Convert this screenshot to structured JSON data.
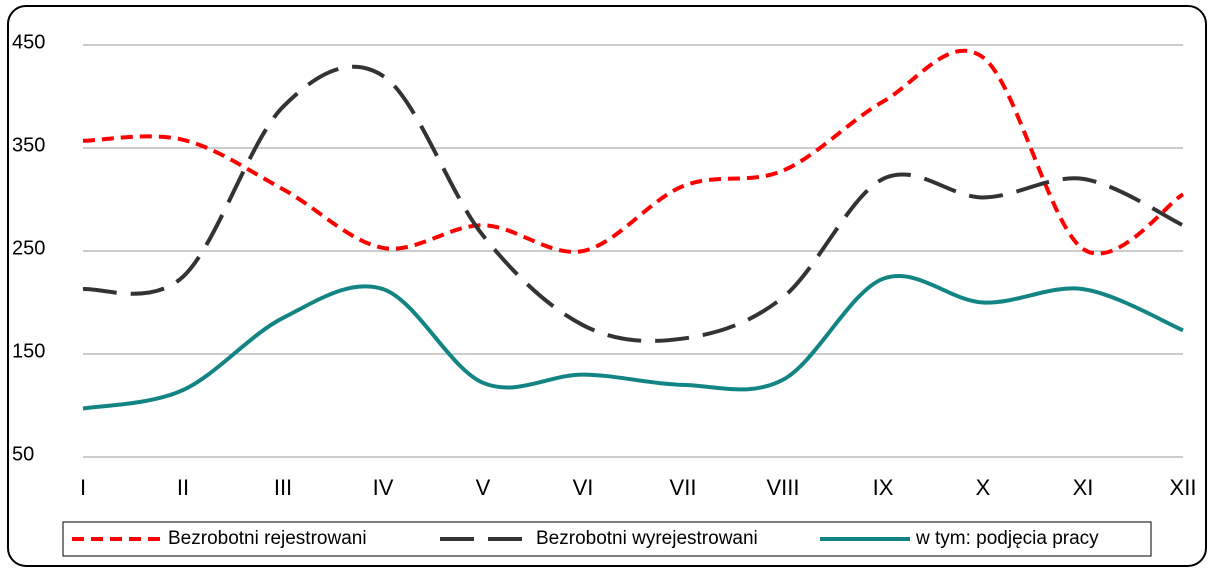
{
  "chart_data": {
    "type": "line",
    "categories": [
      "I",
      "II",
      "III",
      "IV",
      "V",
      "VI",
      "VII",
      "VIII",
      "IX",
      "X",
      "XI",
      "XII"
    ],
    "series": [
      {
        "name": "Bezrobotni rejestrowani",
        "color": "#ff0000",
        "dash": "dashed",
        "values": [
          357,
          358,
          310,
          253,
          275,
          250,
          313,
          328,
          395,
          438,
          252,
          305
        ]
      },
      {
        "name": "Bezrobotni wyrejestrowani",
        "color": "#333333",
        "dash": "longdash",
        "values": [
          213,
          225,
          390,
          420,
          265,
          178,
          165,
          205,
          320,
          302,
          320,
          275
        ]
      },
      {
        "name": "w tym: podjęcia pracy",
        "color": "#138484",
        "dash": "solid",
        "values": [
          97,
          115,
          185,
          213,
          122,
          130,
          120,
          125,
          223,
          200,
          213,
          173
        ]
      }
    ],
    "ylim": [
      50,
      450
    ],
    "yticks": [
      50,
      150,
      250,
      350,
      450
    ],
    "grid": true,
    "legend": "bottom"
  }
}
